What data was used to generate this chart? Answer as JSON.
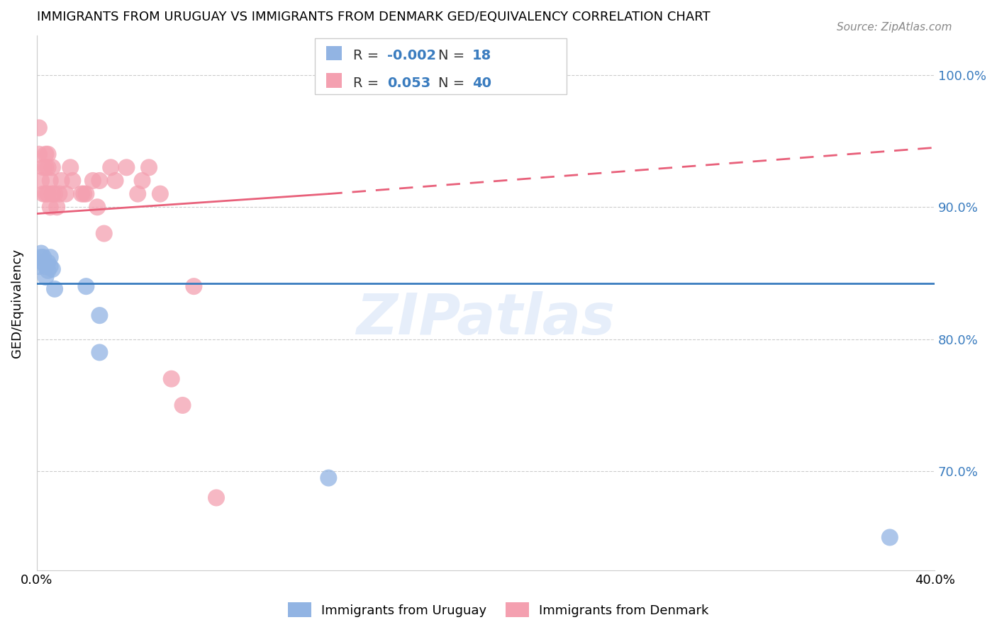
{
  "title": "IMMIGRANTS FROM URUGUAY VS IMMIGRANTS FROM DENMARK GED/EQUIVALENCY CORRELATION CHART",
  "source": "Source: ZipAtlas.com",
  "ylabel": "GED/Equivalency",
  "ytick_labels": [
    "100.0%",
    "90.0%",
    "80.0%",
    "70.0%"
  ],
  "ytick_values": [
    1.0,
    0.9,
    0.8,
    0.7
  ],
  "xlim": [
    0.0,
    0.4
  ],
  "ylim": [
    0.625,
    1.03
  ],
  "color_uruguay": "#92b4e3",
  "color_denmark": "#f4a0b0",
  "color_line_uruguay": "#3a7cbf",
  "color_line_denmark": "#e8607a",
  "watermark": "ZIPatlas",
  "uruguay_x": [
    0.001,
    0.002,
    0.002,
    0.003,
    0.003,
    0.004,
    0.004,
    0.005,
    0.005,
    0.006,
    0.006,
    0.007,
    0.008,
    0.022,
    0.028,
    0.028,
    0.13,
    0.38
  ],
  "uruguay_y": [
    0.855,
    0.862,
    0.865,
    0.858,
    0.862,
    0.847,
    0.855,
    0.852,
    0.858,
    0.855,
    0.862,
    0.853,
    0.838,
    0.84,
    0.818,
    0.79,
    0.695,
    0.65
  ],
  "denmark_x": [
    0.001,
    0.001,
    0.002,
    0.003,
    0.003,
    0.004,
    0.004,
    0.004,
    0.005,
    0.005,
    0.005,
    0.006,
    0.006,
    0.007,
    0.007,
    0.008,
    0.009,
    0.01,
    0.011,
    0.013,
    0.015,
    0.016,
    0.02,
    0.021,
    0.022,
    0.025,
    0.027,
    0.028,
    0.03,
    0.033,
    0.035,
    0.04,
    0.045,
    0.047,
    0.05,
    0.055,
    0.06,
    0.065,
    0.07,
    0.08
  ],
  "denmark_y": [
    0.94,
    0.96,
    0.92,
    0.93,
    0.91,
    0.94,
    0.93,
    0.91,
    0.94,
    0.93,
    0.91,
    0.92,
    0.9,
    0.93,
    0.91,
    0.91,
    0.9,
    0.91,
    0.92,
    0.91,
    0.93,
    0.92,
    0.91,
    0.91,
    0.91,
    0.92,
    0.9,
    0.92,
    0.88,
    0.93,
    0.92,
    0.93,
    0.91,
    0.92,
    0.93,
    0.91,
    0.77,
    0.75,
    0.84,
    0.68
  ],
  "line_uruguay_x0": 0.0,
  "line_uruguay_x1": 0.4,
  "line_uruguay_y0": 0.842,
  "line_uruguay_y1": 0.842,
  "line_denmark_solid_x0": 0.0,
  "line_denmark_solid_x1": 0.13,
  "line_denmark_solid_y0": 0.895,
  "line_denmark_solid_y1": 0.91,
  "line_denmark_dash_x0": 0.13,
  "line_denmark_dash_x1": 0.4,
  "line_denmark_dash_y0": 0.91,
  "line_denmark_dash_y1": 0.945
}
